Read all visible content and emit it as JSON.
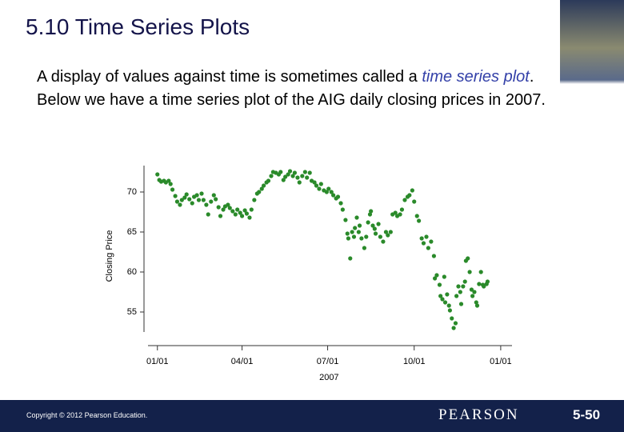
{
  "slide": {
    "title": "5.10 Time Series Plots",
    "body": [
      "A display of values against time is sometimes called a ",
      "time series plot",
      ". Below we have a time series plot of the AIG daily closing prices in 2007."
    ],
    "footer": {
      "copyright": "Copyright © 2012 Pearson Education.",
      "publisher": "PEARSON",
      "page": "5-50"
    }
  },
  "chart_data": {
    "type": "scatter",
    "xlabel": "2007",
    "ylabel": "Closing Price",
    "color": "#2a8a2a",
    "xlim": [
      -10,
      377
    ],
    "ylim": [
      52.5,
      73.3
    ],
    "xticks": [
      {
        "value": 0,
        "label": "01/01"
      },
      {
        "value": 90,
        "label": "04/01"
      },
      {
        "value": 181,
        "label": "07/01"
      },
      {
        "value": 273,
        "label": "10/01"
      },
      {
        "value": 365,
        "label": "01/01"
      }
    ],
    "yticks": [
      55,
      60,
      65,
      70
    ],
    "x": [
      0,
      2,
      4,
      7,
      9,
      12,
      14,
      16,
      19,
      21,
      24,
      26,
      29,
      31,
      34,
      37,
      39,
      42,
      44,
      47,
      49,
      52,
      54,
      57,
      60,
      62,
      65,
      67,
      70,
      72,
      75,
      77,
      80,
      83,
      85,
      88,
      90,
      93,
      95,
      98,
      100,
      103,
      106,
      108,
      111,
      113,
      116,
      118,
      121,
      123,
      126,
      129,
      131,
      134,
      136,
      139,
      141,
      144,
      146,
      149,
      151,
      154,
      157,
      159,
      162,
      164,
      167,
      169,
      172,
      174,
      177,
      180,
      182,
      185,
      187,
      190,
      192,
      195,
      197,
      200,
      202,
      203,
      205,
      207,
      209,
      210,
      212,
      214,
      215,
      217,
      220,
      222,
      224,
      226,
      227,
      229,
      231,
      232,
      235,
      237,
      240,
      243,
      245,
      248,
      250,
      253,
      255,
      258,
      260,
      263,
      266,
      268,
      271,
      273,
      276,
      278,
      281,
      283,
      286,
      288,
      291,
      294,
      295,
      297,
      300,
      301,
      303,
      305,
      306,
      308,
      310,
      311,
      313,
      315,
      317,
      318,
      320,
      322,
      323,
      325,
      327,
      328,
      330,
      332,
      334,
      335,
      337,
      339,
      340,
      342,
      344,
      346,
      347,
      350,
      351
    ],
    "values": [
      72.2,
      71.5,
      71.3,
      71.4,
      71.2,
      71.4,
      71.0,
      70.3,
      69.5,
      68.8,
      68.4,
      69.0,
      69.3,
      69.7,
      69.1,
      68.6,
      69.4,
      69.6,
      69.0,
      69.8,
      69.0,
      68.4,
      67.2,
      68.8,
      69.6,
      69.1,
      68.1,
      67.0,
      67.8,
      68.2,
      68.4,
      68.0,
      67.6,
      67.2,
      67.8,
      67.4,
      67.0,
      67.7,
      67.3,
      66.8,
      67.8,
      69.0,
      69.8,
      70.0,
      70.4,
      70.8,
      71.2,
      71.4,
      72.0,
      72.5,
      72.4,
      72.2,
      72.5,
      71.5,
      71.9,
      72.2,
      72.6,
      72.0,
      72.4,
      71.8,
      71.2,
      72.0,
      72.5,
      71.8,
      72.4,
      71.4,
      71.2,
      70.8,
      70.4,
      71.0,
      70.2,
      70.0,
      70.4,
      70.0,
      69.6,
      69.2,
      69.4,
      68.6,
      67.8,
      66.5,
      64.8,
      64.2,
      61.7,
      65.0,
      64.4,
      65.5,
      66.8,
      65.0,
      65.8,
      64.2,
      63.0,
      64.4,
      66.2,
      67.2,
      67.6,
      65.8,
      65.4,
      64.8,
      66.0,
      64.4,
      63.8,
      65.0,
      64.6,
      65.0,
      67.2,
      67.4,
      67.0,
      67.2,
      67.8,
      69.0,
      69.4,
      69.6,
      70.2,
      68.8,
      67.0,
      66.4,
      64.2,
      63.6,
      64.4,
      63.0,
      63.8,
      62.0,
      59.2,
      59.6,
      58.4,
      57.0,
      56.6,
      59.4,
      56.2,
      57.2,
      55.8,
      55.2,
      54.2,
      53.0,
      53.6,
      57.0,
      58.2,
      57.5,
      56.0,
      58.2,
      58.8,
      61.4,
      61.7,
      60.0,
      57.8,
      57.0,
      57.5,
      56.2,
      55.8,
      58.5,
      60.0,
      58.4,
      58.2,
      58.5,
      58.8
    ]
  }
}
